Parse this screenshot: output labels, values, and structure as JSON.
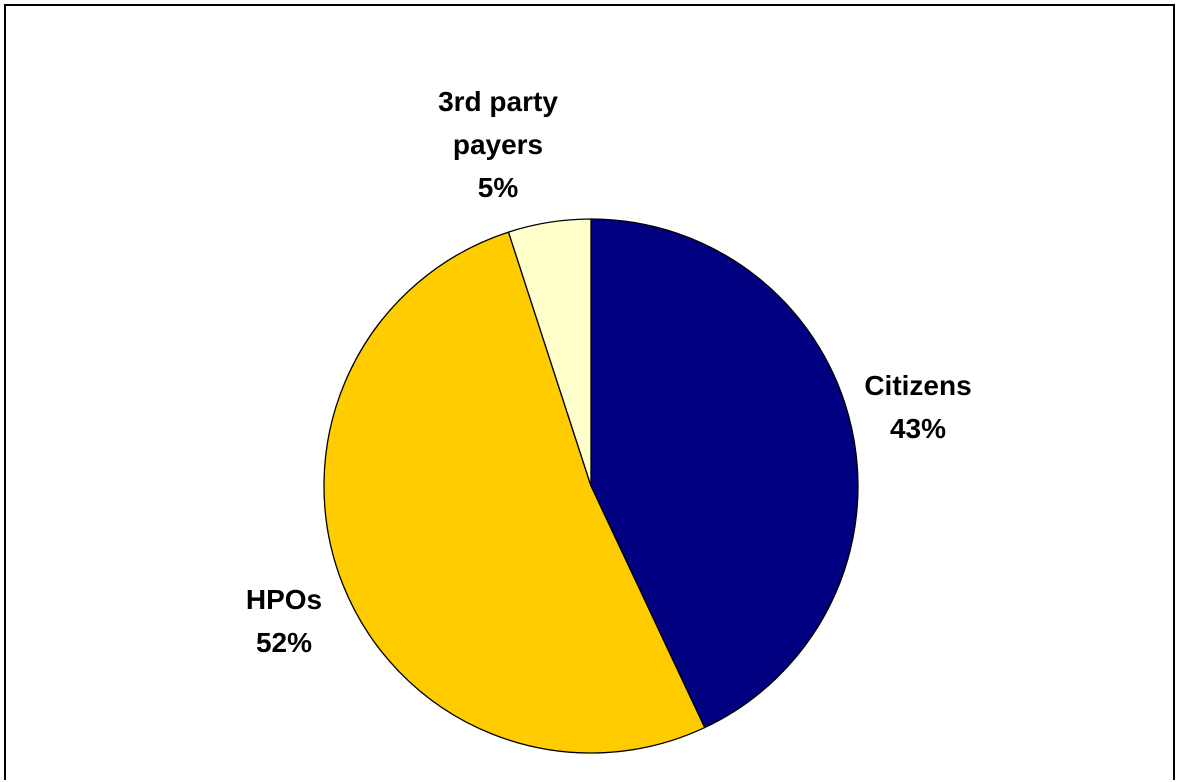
{
  "chart_data": {
    "type": "pie",
    "slices": [
      {
        "label": "Citizens",
        "value": 43,
        "value_label": "43%",
        "color": "#000080"
      },
      {
        "label": "HPOs",
        "value": 52,
        "value_label": "52%",
        "color": "#FFCC00"
      },
      {
        "label": "3rd party payers",
        "label_lines": [
          "3rd party",
          "payers"
        ],
        "value": 5,
        "value_label": "5%",
        "color": "#FFFFCC"
      }
    ],
    "slice_edge_color": "#000000",
    "start": "12 o'clock",
    "direction": "clockwise",
    "legend": "none"
  }
}
